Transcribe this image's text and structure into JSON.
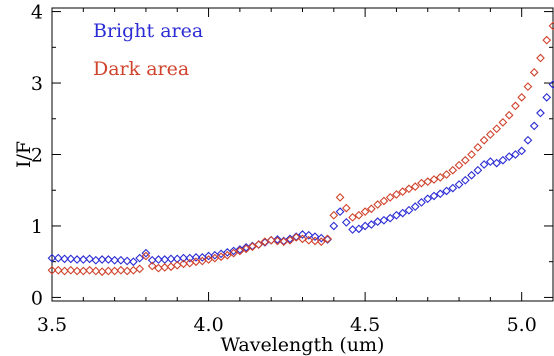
{
  "chart_data": {
    "type": "scatter",
    "title": "",
    "xlabel": "Wavelength (um)",
    "ylabel": "I/F",
    "xlim": [
      3.5,
      5.1
    ],
    "ylim": [
      -0.05,
      4.05
    ],
    "x_ticks": [
      3.5,
      4.0,
      4.5,
      5.0
    ],
    "x_tick_labels": [
      "3.5",
      "4.0",
      "4.5",
      "5.0"
    ],
    "y_ticks": [
      0,
      1,
      2,
      3,
      4
    ],
    "y_tick_labels": [
      "0",
      "1",
      "2",
      "3",
      "4"
    ],
    "grid": false,
    "legend_position": "top-left",
    "marker": "diamond-open",
    "series": [
      {
        "name": "Bright area",
        "color": "#2c2cd4",
        "points": [
          [
            3.5,
            0.55
          ],
          [
            3.52,
            0.55
          ],
          [
            3.54,
            0.54
          ],
          [
            3.56,
            0.54
          ],
          [
            3.58,
            0.53
          ],
          [
            3.6,
            0.53
          ],
          [
            3.62,
            0.54
          ],
          [
            3.64,
            0.52
          ],
          [
            3.66,
            0.53
          ],
          [
            3.68,
            0.53
          ],
          [
            3.7,
            0.52
          ],
          [
            3.72,
            0.52
          ],
          [
            3.74,
            0.51
          ],
          [
            3.76,
            0.5
          ],
          [
            3.78,
            0.55
          ],
          [
            3.8,
            0.62
          ],
          [
            3.82,
            0.52
          ],
          [
            3.84,
            0.53
          ],
          [
            3.86,
            0.53
          ],
          [
            3.88,
            0.54
          ],
          [
            3.9,
            0.54
          ],
          [
            3.92,
            0.55
          ],
          [
            3.94,
            0.55
          ],
          [
            3.96,
            0.56
          ],
          [
            3.98,
            0.56
          ],
          [
            4.0,
            0.58
          ],
          [
            4.02,
            0.59
          ],
          [
            4.04,
            0.61
          ],
          [
            4.06,
            0.63
          ],
          [
            4.08,
            0.65
          ],
          [
            4.1,
            0.67
          ],
          [
            4.12,
            0.7
          ],
          [
            4.14,
            0.72
          ],
          [
            4.16,
            0.74
          ],
          [
            4.18,
            0.77
          ],
          [
            4.2,
            0.8
          ],
          [
            4.22,
            0.81
          ],
          [
            4.24,
            0.79
          ],
          [
            4.26,
            0.82
          ],
          [
            4.28,
            0.85
          ],
          [
            4.3,
            0.88
          ],
          [
            4.32,
            0.87
          ],
          [
            4.34,
            0.85
          ],
          [
            4.36,
            0.83
          ],
          [
            4.38,
            0.81
          ],
          [
            4.4,
            1.0
          ],
          [
            4.42,
            1.2
          ],
          [
            4.44,
            1.05
          ],
          [
            4.46,
            0.95
          ],
          [
            4.48,
            0.96
          ],
          [
            4.5,
            1.0
          ],
          [
            4.52,
            1.02
          ],
          [
            4.54,
            1.06
          ],
          [
            4.56,
            1.08
          ],
          [
            4.58,
            1.11
          ],
          [
            4.6,
            1.15
          ],
          [
            4.62,
            1.18
          ],
          [
            4.64,
            1.22
          ],
          [
            4.66,
            1.27
          ],
          [
            4.68,
            1.33
          ],
          [
            4.7,
            1.38
          ],
          [
            4.72,
            1.42
          ],
          [
            4.74,
            1.45
          ],
          [
            4.76,
            1.49
          ],
          [
            4.78,
            1.53
          ],
          [
            4.8,
            1.58
          ],
          [
            4.82,
            1.64
          ],
          [
            4.84,
            1.71
          ],
          [
            4.86,
            1.78
          ],
          [
            4.88,
            1.86
          ],
          [
            4.9,
            1.9
          ],
          [
            4.92,
            1.88
          ],
          [
            4.94,
            1.92
          ],
          [
            4.96,
            1.97
          ],
          [
            4.98,
            2.0
          ],
          [
            5.0,
            2.05
          ],
          [
            5.02,
            2.2
          ],
          [
            5.04,
            2.4
          ],
          [
            5.06,
            2.58
          ],
          [
            5.08,
            2.8
          ],
          [
            5.1,
            2.98
          ]
        ]
      },
      {
        "name": "Dark area",
        "color": "#d0432c",
        "points": [
          [
            3.5,
            0.38
          ],
          [
            3.52,
            0.38
          ],
          [
            3.54,
            0.37
          ],
          [
            3.56,
            0.38
          ],
          [
            3.58,
            0.37
          ],
          [
            3.6,
            0.37
          ],
          [
            3.62,
            0.38
          ],
          [
            3.64,
            0.37
          ],
          [
            3.66,
            0.36
          ],
          [
            3.68,
            0.37
          ],
          [
            3.7,
            0.37
          ],
          [
            3.72,
            0.38
          ],
          [
            3.74,
            0.37
          ],
          [
            3.76,
            0.38
          ],
          [
            3.78,
            0.4
          ],
          [
            3.8,
            0.58
          ],
          [
            3.82,
            0.44
          ],
          [
            3.84,
            0.41
          ],
          [
            3.86,
            0.42
          ],
          [
            3.88,
            0.43
          ],
          [
            3.9,
            0.45
          ],
          [
            3.92,
            0.47
          ],
          [
            3.94,
            0.48
          ],
          [
            3.96,
            0.5
          ],
          [
            3.98,
            0.51
          ],
          [
            4.0,
            0.53
          ],
          [
            4.02,
            0.55
          ],
          [
            4.04,
            0.57
          ],
          [
            4.06,
            0.59
          ],
          [
            4.08,
            0.62
          ],
          [
            4.1,
            0.65
          ],
          [
            4.12,
            0.68
          ],
          [
            4.14,
            0.71
          ],
          [
            4.16,
            0.74
          ],
          [
            4.18,
            0.78
          ],
          [
            4.2,
            0.8
          ],
          [
            4.22,
            0.79
          ],
          [
            4.24,
            0.78
          ],
          [
            4.26,
            0.8
          ],
          [
            4.28,
            0.84
          ],
          [
            4.3,
            0.82
          ],
          [
            4.32,
            0.8
          ],
          [
            4.34,
            0.79
          ],
          [
            4.36,
            0.78
          ],
          [
            4.38,
            0.82
          ],
          [
            4.4,
            1.15
          ],
          [
            4.42,
            1.4
          ],
          [
            4.44,
            1.25
          ],
          [
            4.46,
            1.12
          ],
          [
            4.48,
            1.15
          ],
          [
            4.5,
            1.2
          ],
          [
            4.52,
            1.24
          ],
          [
            4.54,
            1.3
          ],
          [
            4.56,
            1.35
          ],
          [
            4.58,
            1.4
          ],
          [
            4.6,
            1.44
          ],
          [
            4.62,
            1.48
          ],
          [
            4.64,
            1.52
          ],
          [
            4.66,
            1.55
          ],
          [
            4.68,
            1.6
          ],
          [
            4.7,
            1.62
          ],
          [
            4.72,
            1.65
          ],
          [
            4.74,
            1.68
          ],
          [
            4.76,
            1.72
          ],
          [
            4.78,
            1.78
          ],
          [
            4.8,
            1.85
          ],
          [
            4.82,
            1.92
          ],
          [
            4.84,
            2.0
          ],
          [
            4.86,
            2.1
          ],
          [
            4.88,
            2.2
          ],
          [
            4.9,
            2.28
          ],
          [
            4.92,
            2.36
          ],
          [
            4.94,
            2.45
          ],
          [
            4.96,
            2.55
          ],
          [
            4.98,
            2.68
          ],
          [
            5.0,
            2.8
          ],
          [
            5.02,
            2.95
          ],
          [
            5.04,
            3.15
          ],
          [
            5.06,
            3.35
          ],
          [
            5.08,
            3.6
          ],
          [
            5.1,
            3.8
          ]
        ]
      }
    ]
  }
}
